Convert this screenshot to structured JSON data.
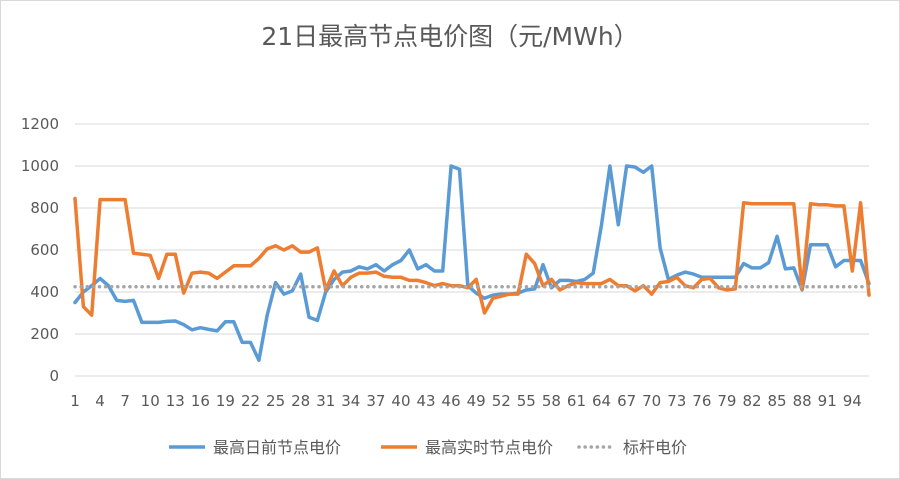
{
  "chart_data": {
    "type": "line",
    "title": "21日最高节点电价图（元/MWh）",
    "xlabel": "",
    "ylabel": "",
    "ylim": [
      0,
      1200
    ],
    "yticks": [
      0,
      200,
      400,
      600,
      800,
      1000,
      1200
    ],
    "xlim": [
      1,
      96
    ],
    "xticks": [
      1,
      4,
      7,
      10,
      13,
      16,
      19,
      22,
      25,
      28,
      31,
      34,
      37,
      40,
      43,
      46,
      49,
      52,
      55,
      58,
      61,
      64,
      67,
      70,
      73,
      76,
      79,
      82,
      85,
      88,
      91,
      94
    ],
    "grid": "horizontal",
    "legend": "bottom",
    "series": [
      {
        "name": "最高日前节点电价",
        "color": "#5B9BD5",
        "style": "solid",
        "values": [
          350,
          400,
          430,
          465,
          430,
          360,
          355,
          360,
          255,
          255,
          255,
          260,
          262,
          245,
          220,
          230,
          222,
          215,
          258,
          258,
          160,
          160,
          75,
          290,
          445,
          390,
          405,
          485,
          280,
          265,
          400,
          460,
          495,
          500,
          520,
          510,
          530,
          500,
          530,
          550,
          600,
          510,
          530,
          500,
          500,
          1000,
          985,
          430,
          395,
          370,
          385,
          390,
          390,
          395,
          410,
          415,
          530,
          420,
          455,
          455,
          450,
          460,
          490,
          720,
          1000,
          720,
          1000,
          995,
          970,
          1000,
          610,
          460,
          480,
          495,
          485,
          470,
          470,
          470,
          470,
          470,
          535,
          515,
          515,
          540,
          665,
          510,
          515,
          410,
          625,
          625,
          625,
          520,
          550,
          550,
          550,
          440
        ]
      },
      {
        "name": "最高实时节点电价",
        "color": "#ED7D31",
        "style": "solid",
        "values": [
          845,
          330,
          290,
          840,
          840,
          840,
          840,
          585,
          580,
          575,
          465,
          580,
          580,
          395,
          490,
          495,
          490,
          465,
          495,
          525,
          525,
          525,
          560,
          605,
          620,
          600,
          620,
          590,
          590,
          610,
          410,
          500,
          430,
          470,
          490,
          490,
          495,
          475,
          470,
          470,
          455,
          455,
          445,
          430,
          440,
          430,
          430,
          420,
          460,
          300,
          370,
          380,
          390,
          390,
          580,
          535,
          430,
          460,
          410,
          430,
          445,
          440,
          440,
          440,
          460,
          430,
          430,
          405,
          430,
          390,
          445,
          450,
          470,
          430,
          420,
          460,
          465,
          420,
          410,
          415,
          825,
          820,
          820,
          820,
          820,
          820,
          820,
          415,
          820,
          815,
          815,
          810,
          810,
          500,
          825,
          385
        ]
      },
      {
        "name": "标杆电价",
        "color": "#A5A5A5",
        "style": "dotted",
        "constant": 425
      }
    ]
  }
}
